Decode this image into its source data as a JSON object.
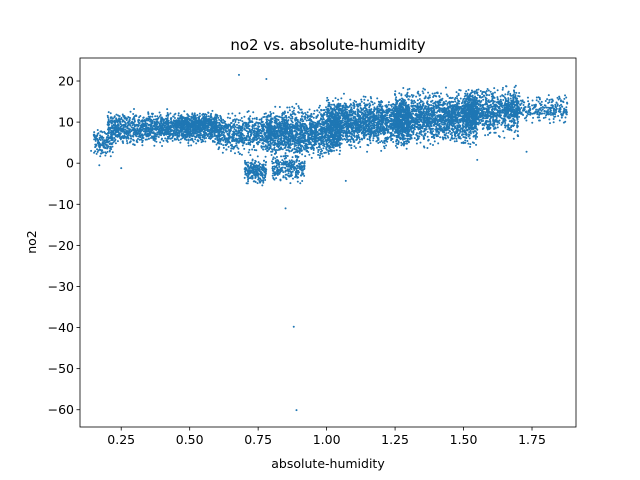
{
  "chart_data": {
    "type": "scatter",
    "title": "no2 vs. absolute-humidity",
    "xlabel": "absolute-humidity",
    "ylabel": "no2",
    "xlim": [
      0.0995,
      1.9106
    ],
    "ylim": [
      -64.2,
      25.6
    ],
    "xticks": [
      0.25,
      0.5,
      0.75,
      1.0,
      1.25,
      1.5,
      1.75
    ],
    "xtick_labels": [
      "0.25",
      "0.50",
      "0.75",
      "1.00",
      "1.25",
      "1.50",
      "1.75"
    ],
    "yticks": [
      -60,
      -50,
      -40,
      -30,
      -20,
      -10,
      0,
      10,
      20
    ],
    "ytick_labels": [
      "−60",
      "−50",
      "−40",
      "−30",
      "−20",
      "−10",
      "0",
      "10",
      "20"
    ],
    "grid": false,
    "marker_color": "#1f77b4",
    "point_clusters": [
      {
        "x_range": [
          0.15,
          0.22
        ],
        "y_range": [
          0.5,
          9.5
        ],
        "count": 140
      },
      {
        "x_range": [
          0.2,
          0.6
        ],
        "y_range": [
          3.5,
          13.5
        ],
        "count": 1500
      },
      {
        "x_range": [
          0.45,
          0.6
        ],
        "y_range": [
          7.5,
          12.5
        ],
        "count": 350
      },
      {
        "x_range": [
          0.6,
          0.8
        ],
        "y_range": [
          1.0,
          13.5
        ],
        "count": 700
      },
      {
        "x_range": [
          0.7,
          0.78
        ],
        "y_range": [
          -6.0,
          2.0
        ],
        "count": 220
      },
      {
        "x_range": [
          0.78,
          1.05
        ],
        "y_range": [
          0.0,
          15.0
        ],
        "count": 1600
      },
      {
        "x_range": [
          0.8,
          0.92
        ],
        "y_range": [
          -5.5,
          3.0
        ],
        "count": 260
      },
      {
        "x_range": [
          1.0,
          1.3
        ],
        "y_range": [
          2.5,
          17.5
        ],
        "count": 1800
      },
      {
        "x_range": [
          1.25,
          1.55
        ],
        "y_range": [
          3.0,
          19.0
        ],
        "count": 1900
      },
      {
        "x_range": [
          1.5,
          1.7
        ],
        "y_range": [
          5.0,
          20.0
        ],
        "count": 900
      },
      {
        "x_range": [
          1.65,
          1.88
        ],
        "y_range": [
          9.0,
          17.5
        ],
        "count": 320
      }
    ],
    "outliers": [
      {
        "x": 0.89,
        "y": -60.1
      },
      {
        "x": 0.88,
        "y": -39.8
      },
      {
        "x": 0.85,
        "y": -11.0
      },
      {
        "x": 0.68,
        "y": 21.5
      },
      {
        "x": 0.78,
        "y": 20.5
      },
      {
        "x": 0.14,
        "y": 3.0
      },
      {
        "x": 1.73,
        "y": 2.8
      },
      {
        "x": 1.07,
        "y": -4.3
      },
      {
        "x": 0.17,
        "y": -0.5
      },
      {
        "x": 1.55,
        "y": 0.8
      },
      {
        "x": 1.82,
        "y": 15.5
      },
      {
        "x": 1.86,
        "y": 13.8
      },
      {
        "x": 0.25,
        "y": -1.2
      }
    ]
  }
}
